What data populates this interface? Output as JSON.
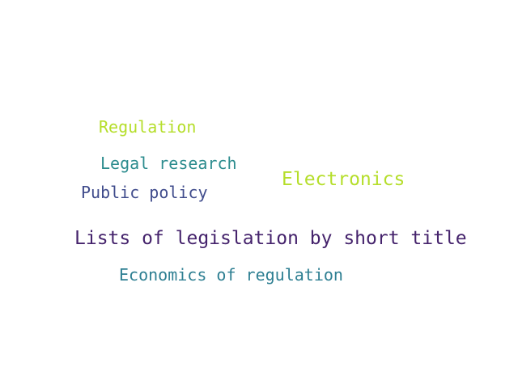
{
  "words": [
    {
      "text": "Regulation",
      "color": "#b5de2b"
    },
    {
      "text": "Legal research",
      "color": "#2c8c8e"
    },
    {
      "text": "Electronics",
      "color": "#b5de2b"
    },
    {
      "text": "Public policy",
      "color": "#404c8c"
    },
    {
      "text": "Lists of legislation by short title",
      "color": "#45236c"
    },
    {
      "text": "Economics of regulation",
      "color": "#2e7f92"
    }
  ]
}
